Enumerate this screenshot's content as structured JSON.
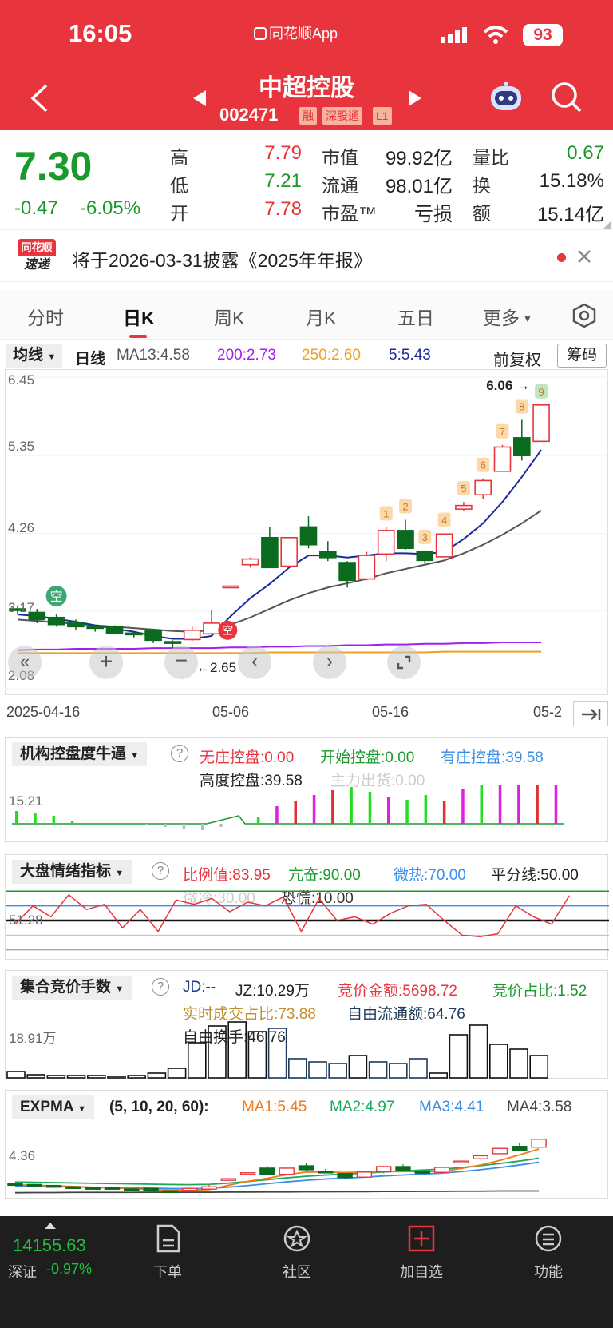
{
  "status": {
    "time": "16:05",
    "app": "同花顺App",
    "battery": "93"
  },
  "header": {
    "title": "中超控股",
    "code": "002471",
    "tags": [
      "融",
      "深股通",
      "L1"
    ]
  },
  "quote": {
    "price": "7.30",
    "change": "-0.47",
    "change_pct": "-6.05%",
    "fields": [
      {
        "label": "高",
        "value": "7.79"
      },
      {
        "label": "市值",
        "value": "99.92亿"
      },
      {
        "label": "量比",
        "value": "0.67"
      },
      {
        "label": "低",
        "value": "7.21"
      },
      {
        "label": "流通",
        "value": "98.01亿"
      },
      {
        "label": "换",
        "value": "15.18%"
      },
      {
        "label": "开",
        "value": "7.78"
      },
      {
        "label": "市盈™",
        "value": "亏损"
      },
      {
        "label": "额",
        "value": "15.14亿"
      }
    ]
  },
  "notice": {
    "logo_top": "同花顺",
    "logo_bottom": "速递",
    "text": "将于2026-03-31披露《2025年年报》"
  },
  "tabs": [
    "分时",
    "日K",
    "周K",
    "月K",
    "五日",
    "更多"
  ],
  "main_chart": {
    "selector": "均线",
    "period": "日线",
    "ma": {
      "ma13": "MA13:4.58",
      "ma200": "200:2.73",
      "ma250": "250:2.60",
      "ma5": "5:5.43"
    },
    "adjust": "前复权",
    "chip": "筹码",
    "y_labels": [
      "6.45",
      "5.35",
      "4.26",
      "3.17",
      "2.08"
    ],
    "x_labels": [
      "2025-04-16",
      "05-06",
      "05-16",
      "05-2"
    ],
    "high_label": "6.06",
    "low_label": "2.65",
    "marker_empty": "空",
    "marker_b": "空",
    "numbers": [
      "1",
      "2",
      "3",
      "4",
      "5",
      "6",
      "7",
      "8",
      "9"
    ]
  },
  "chart_data": {
    "type": "candlestick",
    "ylim": [
      2.08,
      6.45
    ],
    "y_ticks": [
      "6.45",
      "5.35",
      "4.26",
      "3.17",
      "2.08"
    ],
    "x_labels": [
      "2025-04-16",
      "05-06",
      "05-16",
      "05-2"
    ],
    "candles": [
      {
        "o": 3.2,
        "c": 3.18,
        "h": 3.25,
        "l": 3.12
      },
      {
        "o": 3.15,
        "c": 3.05,
        "h": 3.2,
        "l": 3.0
      },
      {
        "o": 3.08,
        "c": 2.98,
        "h": 3.12,
        "l": 2.95
      },
      {
        "o": 3.0,
        "c": 2.95,
        "h": 3.05,
        "l": 2.9
      },
      {
        "o": 2.95,
        "c": 2.93,
        "h": 2.98,
        "l": 2.88
      },
      {
        "o": 2.95,
        "c": 2.86,
        "h": 2.97,
        "l": 2.84
      },
      {
        "o": 2.86,
        "c": 2.85,
        "h": 2.88,
        "l": 2.8
      },
      {
        "o": 2.9,
        "c": 2.76,
        "h": 2.92,
        "l": 2.72
      },
      {
        "o": 2.74,
        "c": 2.73,
        "h": 2.76,
        "l": 2.65
      },
      {
        "o": 2.77,
        "c": 2.9,
        "h": 2.95,
        "l": 2.75
      },
      {
        "o": 2.85,
        "c": 3.0,
        "h": 3.19,
        "l": 2.83
      },
      {
        "o": 3.5,
        "c": 3.52,
        "h": 3.53,
        "l": 3.49
      },
      {
        "o": 3.82,
        "c": 3.9,
        "h": 3.92,
        "l": 3.78
      },
      {
        "o": 4.2,
        "c": 3.78,
        "h": 4.35,
        "l": 3.78
      },
      {
        "o": 3.8,
        "c": 4.2,
        "h": 4.2,
        "l": 3.78
      },
      {
        "o": 4.35,
        "c": 4.1,
        "h": 4.5,
        "l": 4.05
      },
      {
        "o": 4.0,
        "c": 3.92,
        "h": 4.15,
        "l": 3.87
      },
      {
        "o": 3.85,
        "c": 3.6,
        "h": 3.87,
        "l": 3.5
      },
      {
        "o": 3.62,
        "c": 3.95,
        "h": 4.0,
        "l": 3.6
      },
      {
        "o": 3.97,
        "c": 4.3,
        "h": 4.35,
        "l": 3.87
      },
      {
        "o": 4.3,
        "c": 4.05,
        "h": 4.45,
        "l": 4.03
      },
      {
        "o": 4.0,
        "c": 3.88,
        "h": 4.02,
        "l": 3.83
      },
      {
        "o": 3.93,
        "c": 4.25,
        "h": 4.26,
        "l": 3.93
      },
      {
        "o": 4.6,
        "c": 4.65,
        "h": 4.7,
        "l": 4.58
      },
      {
        "o": 4.8,
        "c": 5.0,
        "h": 5.03,
        "l": 4.74
      },
      {
        "o": 5.13,
        "c": 5.47,
        "h": 5.5,
        "l": 5.13
      },
      {
        "o": 5.6,
        "c": 5.35,
        "h": 5.85,
        "l": 5.28
      },
      {
        "o": 5.55,
        "c": 6.06,
        "h": 6.06,
        "l": 5.55
      }
    ],
    "ma_lines": {
      "ma5": [
        3.12,
        3.1,
        3.06,
        3.02,
        2.97,
        2.92,
        2.88,
        2.82,
        2.78,
        2.78,
        2.82,
        3.1,
        3.35,
        3.55,
        3.78,
        3.95,
        3.95,
        3.92,
        3.95,
        3.98,
        3.98,
        3.97,
        4.0,
        4.18,
        4.4,
        4.7,
        5.05,
        5.43
      ],
      "ma13": [
        3.05,
        3.03,
        3.01,
        2.99,
        2.97,
        2.95,
        2.93,
        2.91,
        2.89,
        2.88,
        2.9,
        2.98,
        3.08,
        3.2,
        3.32,
        3.42,
        3.5,
        3.56,
        3.62,
        3.7,
        3.76,
        3.82,
        3.88,
        3.98,
        4.1,
        4.24,
        4.4,
        4.58
      ],
      "ma200": [
        2.62,
        2.63,
        2.63,
        2.64,
        2.64,
        2.64,
        2.64,
        2.65,
        2.65,
        2.65,
        2.65,
        2.66,
        2.66,
        2.67,
        2.67,
        2.68,
        2.68,
        2.69,
        2.69,
        2.7,
        2.7,
        2.71,
        2.71,
        2.72,
        2.72,
        2.73,
        2.73,
        2.73
      ],
      "ma250": [
        2.58,
        2.58,
        2.58,
        2.58,
        2.58,
        2.58,
        2.58,
        2.58,
        2.58,
        2.58,
        2.58,
        2.58,
        2.58,
        2.59,
        2.59,
        2.59,
        2.59,
        2.59,
        2.59,
        2.59,
        2.59,
        2.59,
        2.6,
        2.6,
        2.6,
        2.6,
        2.6,
        2.6
      ]
    }
  },
  "ind1": {
    "name": "机构控盘度牛逼",
    "items": [
      {
        "t": "无庄控盘:0.00",
        "c": "#e8353d"
      },
      {
        "t": "开始控盘:0.00",
        "c": "#1a9a2a"
      },
      {
        "t": "有庄控盘:39.58",
        "c": "#3a8ee6"
      }
    ],
    "line2": "高度控盘:39.58",
    "line2b": "主力出货:0.00",
    "ylabel": "15.21"
  },
  "ind2": {
    "name": "大盘情绪指标",
    "items": [
      {
        "t": "比例值:83.95",
        "c": "#e8353d"
      },
      {
        "t": "亢奋:90.00",
        "c": "#1a9a2a"
      },
      {
        "t": "微热:70.00",
        "c": "#3a8ee6"
      },
      {
        "t": "平分线:50.00",
        "c": "#222"
      }
    ],
    "line2a": "微冷:30.00",
    "line2b": "恐慌:10.00",
    "ylabel": "51.28"
  },
  "ind3": {
    "name": "集合竞价手数",
    "items": [
      {
        "t": "JD:--",
        "c": "#1e3a8a"
      },
      {
        "t": "JZ:10.29万",
        "c": "#222"
      },
      {
        "t": "竞价金额:5698.72",
        "c": "#e8353d"
      },
      {
        "t": "竞价占比:1.52",
        "c": "#1a9a2a"
      }
    ],
    "line2a": "实时成交占比:73.88",
    "line2b": "自由流通额:64.76",
    "line3": "自由换手:46.76",
    "ylabel": "18.91万"
  },
  "ind4": {
    "name": "EXPMA",
    "params": "(5, 10, 20, 60):",
    "items": [
      {
        "t": "MA1:5.45",
        "c": "#f07a1a"
      },
      {
        "t": "MA2:4.97",
        "c": "#1aaa5a"
      },
      {
        "t": "MA3:4.41",
        "c": "#3a8ee6"
      },
      {
        "t": "MA4:3.58",
        "c": "#444"
      }
    ],
    "ylabel": "4.36"
  },
  "footer": {
    "index_value": "14155.63",
    "index_name": "深证",
    "index_change": "-0.97%",
    "items": [
      "下单",
      "社区",
      "加自选",
      "功能"
    ]
  }
}
